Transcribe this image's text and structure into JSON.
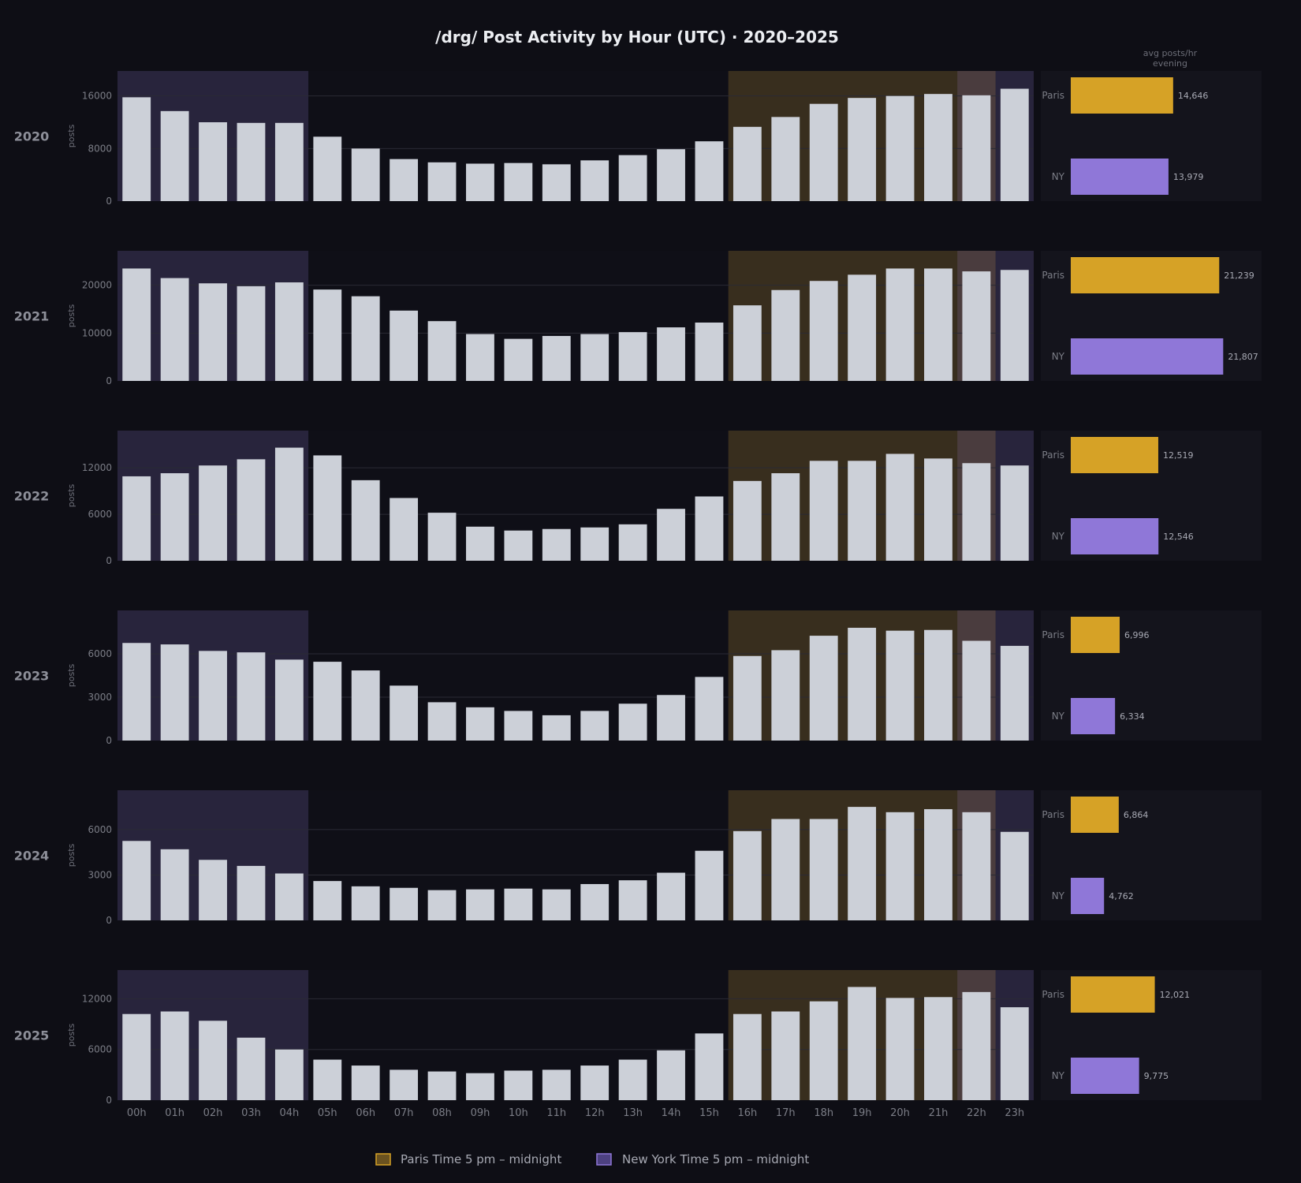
{
  "title": "/drg/ Post Activity by Hour (UTC)  ·  2020–2025",
  "side_header": [
    "avg posts/hr",
    "evening"
  ],
  "legend": [
    {
      "label": "Paris Time  5 pm – midnight",
      "color": "#d6a226"
    },
    {
      "label": "New York Time  5 pm – midnight",
      "color": "#8f77d8"
    }
  ],
  "colors": {
    "background": "#0e0e15",
    "bar": "#ccd0d8",
    "paris": "#d6a226",
    "ny": "#8f77d8",
    "paris_band": "#382e1e",
    "ny_band": "#28243c",
    "overlap_band": "#4a3c3e"
  },
  "chart_data": [
    {
      "type": "bar",
      "title": "2020",
      "ylabel": "posts",
      "categories": [
        "00h",
        "01h",
        "02h",
        "03h",
        "04h",
        "05h",
        "06h",
        "07h",
        "08h",
        "09h",
        "10h",
        "11h",
        "12h",
        "13h",
        "14h",
        "15h",
        "16h",
        "17h",
        "18h",
        "19h",
        "20h",
        "21h",
        "22h",
        "23h"
      ],
      "values": [
        15800,
        13700,
        12000,
        11900,
        11900,
        9800,
        8000,
        6400,
        5900,
        5700,
        5800,
        5600,
        6200,
        7000,
        7900,
        9100,
        11300,
        12800,
        14800,
        15700,
        16000,
        16300,
        16100,
        17100
      ],
      "ylim": [
        0,
        19800
      ],
      "yticks": [
        0,
        8000,
        16000
      ],
      "ytick_labels": [
        "0",
        "8000",
        "16000"
      ],
      "averages": [
        {
          "label": "Paris",
          "value": 14646,
          "value_label": "14,646"
        },
        {
          "label": "NY",
          "value": 13979,
          "value_label": "13,979"
        }
      ]
    },
    {
      "type": "bar",
      "title": "2021",
      "ylabel": "posts",
      "categories": [
        "00h",
        "01h",
        "02h",
        "03h",
        "04h",
        "05h",
        "06h",
        "07h",
        "08h",
        "09h",
        "10h",
        "11h",
        "12h",
        "13h",
        "14h",
        "15h",
        "16h",
        "17h",
        "18h",
        "19h",
        "20h",
        "21h",
        "22h",
        "23h"
      ],
      "values": [
        23500,
        21500,
        20400,
        19800,
        20600,
        19100,
        17700,
        14700,
        12500,
        9800,
        8800,
        9400,
        9800,
        10200,
        11200,
        12200,
        15800,
        19000,
        20900,
        22200,
        23500,
        23500,
        22900,
        23200
      ],
      "ylim": [
        0,
        27200
      ],
      "yticks": [
        0,
        10000,
        20000
      ],
      "ytick_labels": [
        "0",
        "10000",
        "20000"
      ],
      "averages": [
        {
          "label": "Paris",
          "value": 21239,
          "value_label": "21,239"
        },
        {
          "label": "NY",
          "value": 21807,
          "value_label": "21,807"
        }
      ]
    },
    {
      "type": "bar",
      "title": "2022",
      "ylabel": "posts",
      "categories": [
        "00h",
        "01h",
        "02h",
        "03h",
        "04h",
        "05h",
        "06h",
        "07h",
        "08h",
        "09h",
        "10h",
        "11h",
        "12h",
        "13h",
        "14h",
        "15h",
        "16h",
        "17h",
        "18h",
        "19h",
        "20h",
        "21h",
        "22h",
        "23h"
      ],
      "values": [
        10900,
        11300,
        12300,
        13100,
        14600,
        13600,
        10400,
        8100,
        6200,
        4400,
        3900,
        4100,
        4300,
        4700,
        6700,
        8300,
        10300,
        11300,
        12900,
        12900,
        13800,
        13200,
        12600,
        12300
      ],
      "ylim": [
        0,
        16800
      ],
      "yticks": [
        0,
        6000,
        12000
      ],
      "ytick_labels": [
        "0",
        "6000",
        "12000"
      ],
      "averages": [
        {
          "label": "Paris",
          "value": 12519,
          "value_label": "12,519"
        },
        {
          "label": "NY",
          "value": 12546,
          "value_label": "12,546"
        }
      ]
    },
    {
      "type": "bar",
      "title": "2023",
      "ylabel": "posts",
      "categories": [
        "00h",
        "01h",
        "02h",
        "03h",
        "04h",
        "05h",
        "06h",
        "07h",
        "08h",
        "09h",
        "10h",
        "11h",
        "12h",
        "13h",
        "14h",
        "15h",
        "16h",
        "17h",
        "18h",
        "19h",
        "20h",
        "21h",
        "22h",
        "23h"
      ],
      "values": [
        6750,
        6650,
        6200,
        6100,
        5600,
        5450,
        4850,
        3800,
        2650,
        2300,
        2050,
        1750,
        2050,
        2550,
        3150,
        4400,
        5850,
        6250,
        7250,
        7800,
        7600,
        7650,
        6900,
        6550
      ],
      "ylim": [
        0,
        9000
      ],
      "yticks": [
        0,
        3000,
        6000
      ],
      "ytick_labels": [
        "0",
        "3000",
        "6000"
      ],
      "averages": [
        {
          "label": "Paris",
          "value": 6996,
          "value_label": "6,996"
        },
        {
          "label": "NY",
          "value": 6334,
          "value_label": "6,334"
        }
      ]
    },
    {
      "type": "bar",
      "title": "2024",
      "ylabel": "posts",
      "categories": [
        "00h",
        "01h",
        "02h",
        "03h",
        "04h",
        "05h",
        "06h",
        "07h",
        "08h",
        "09h",
        "10h",
        "11h",
        "12h",
        "13h",
        "14h",
        "15h",
        "16h",
        "17h",
        "18h",
        "19h",
        "20h",
        "21h",
        "22h",
        "23h"
      ],
      "values": [
        5250,
        4700,
        4000,
        3600,
        3100,
        2600,
        2250,
        2150,
        2000,
        2050,
        2100,
        2050,
        2400,
        2650,
        3150,
        4600,
        5900,
        6700,
        6700,
        7500,
        7150,
        7350,
        7150,
        5850
      ],
      "ylim": [
        0,
        8600
      ],
      "yticks": [
        0,
        3000,
        6000
      ],
      "ytick_labels": [
        "0",
        "3000",
        "6000"
      ],
      "averages": [
        {
          "label": "Paris",
          "value": 6864,
          "value_label": "6,864"
        },
        {
          "label": "NY",
          "value": 4762,
          "value_label": "4,762"
        }
      ]
    },
    {
      "type": "bar",
      "title": "2025",
      "ylabel": "posts",
      "categories": [
        "00h",
        "01h",
        "02h",
        "03h",
        "04h",
        "05h",
        "06h",
        "07h",
        "08h",
        "09h",
        "10h",
        "11h",
        "12h",
        "13h",
        "14h",
        "15h",
        "16h",
        "17h",
        "18h",
        "19h",
        "20h",
        "21h",
        "22h",
        "23h"
      ],
      "values": [
        10200,
        10500,
        9400,
        7400,
        6000,
        4800,
        4100,
        3600,
        3400,
        3200,
        3500,
        3600,
        4100,
        4800,
        5900,
        7900,
        10200,
        10500,
        11700,
        13400,
        12100,
        12200,
        12800,
        11000
      ],
      "ylim": [
        0,
        15400
      ],
      "yticks": [
        0,
        6000,
        12000
      ],
      "ytick_labels": [
        "0",
        "6000",
        "12000"
      ],
      "averages": [
        {
          "label": "Paris",
          "value": 12021,
          "value_label": "12,021"
        },
        {
          "label": "NY",
          "value": 9775,
          "value_label": "9,775"
        }
      ]
    }
  ]
}
